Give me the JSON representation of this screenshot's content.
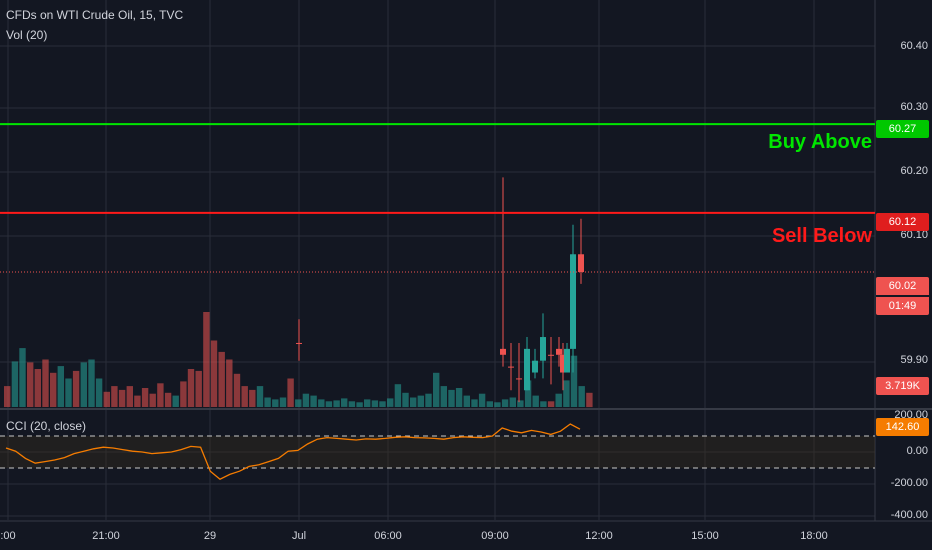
{
  "header": {
    "title": "CFDs on WTI Crude Oil, 15, TVC",
    "volume_label": "Vol (20)",
    "cci_label": "CCI (20, close)"
  },
  "annotations": {
    "buy_label": "Buy Above",
    "sell_label": "Sell Below",
    "buy_color": "#00e600",
    "sell_color": "#ff1a1a"
  },
  "price_axis": {
    "ticks": [
      "60.40",
      "60.30",
      "60.20",
      "60.10",
      "59.90"
    ]
  },
  "price_tags": {
    "buy_level": "60.27",
    "sell_level": "60.12",
    "last_price": "60.02",
    "countdown": "01:49",
    "volume": "3.719K",
    "cci_value": "142.60",
    "cci_top": "200.00"
  },
  "cci_axis": {
    "ticks": [
      "0.00",
      "-200.00",
      "-400.00"
    ]
  },
  "time_axis": {
    "ticks": [
      ":00",
      "21:00",
      "29",
      "Jul",
      "06:00",
      "09:00",
      "12:00",
      "15:00",
      "18:00"
    ]
  },
  "colors": {
    "background": "#131722",
    "grid": "#2a2e39",
    "bull": "#26a69a",
    "bear": "#ef5350",
    "cci": "#f57c00"
  },
  "chart_data": {
    "type": "candlestick",
    "symbol": "CFDs on WTI Crude Oil",
    "interval": "15",
    "price_ylim": [
      59.79,
      60.48
    ],
    "levels": {
      "buy_above": 60.27,
      "sell_below": 60.12,
      "last": 60.02
    },
    "candles": [
      {
        "o": 59.9,
        "h": 59.94,
        "l": 59.87,
        "c": 59.9,
        "dir": "bear"
      },
      {
        "o": 59.88,
        "h": 60.18,
        "l": 59.86,
        "c": 59.89,
        "dir": "bear"
      },
      {
        "o": 59.86,
        "h": 59.9,
        "l": 59.82,
        "c": 59.86,
        "dir": "bear"
      },
      {
        "o": 59.84,
        "h": 59.9,
        "l": 59.8,
        "c": 59.84,
        "dir": "bear"
      },
      {
        "o": 59.82,
        "h": 59.91,
        "l": 59.82,
        "c": 59.89,
        "dir": "bull"
      },
      {
        "o": 59.85,
        "h": 59.89,
        "l": 59.84,
        "c": 59.87,
        "dir": "bull"
      },
      {
        "o": 59.87,
        "h": 59.95,
        "l": 59.84,
        "c": 59.91,
        "dir": "bull"
      },
      {
        "o": 59.88,
        "h": 59.91,
        "l": 59.83,
        "c": 59.88,
        "dir": "bear"
      },
      {
        "o": 59.89,
        "h": 59.91,
        "l": 59.86,
        "c": 59.88,
        "dir": "bear"
      },
      {
        "o": 59.88,
        "h": 59.9,
        "l": 59.82,
        "c": 59.85,
        "dir": "bear"
      },
      {
        "o": 59.85,
        "h": 59.9,
        "l": 59.85,
        "c": 59.89,
        "dir": "bull"
      },
      {
        "o": 59.89,
        "h": 60.1,
        "l": 59.85,
        "c": 60.05,
        "dir": "bull"
      },
      {
        "o": 60.05,
        "h": 60.11,
        "l": 60.0,
        "c": 60.02,
        "dir": "bear"
      }
    ],
    "volume": [
      {
        "v": 22,
        "dir": "bear"
      },
      {
        "v": 48,
        "dir": "bull"
      },
      {
        "v": 62,
        "dir": "bull"
      },
      {
        "v": 47,
        "dir": "bear"
      },
      {
        "v": 40,
        "dir": "bear"
      },
      {
        "v": 50,
        "dir": "bear"
      },
      {
        "v": 36,
        "dir": "bear"
      },
      {
        "v": 43,
        "dir": "bull"
      },
      {
        "v": 30,
        "dir": "bull"
      },
      {
        "v": 38,
        "dir": "bear"
      },
      {
        "v": 47,
        "dir": "bull"
      },
      {
        "v": 50,
        "dir": "bull"
      },
      {
        "v": 30,
        "dir": "bull"
      },
      {
        "v": 16,
        "dir": "bear"
      },
      {
        "v": 22,
        "dir": "bear"
      },
      {
        "v": 18,
        "dir": "bear"
      },
      {
        "v": 22,
        "dir": "bear"
      },
      {
        "v": 12,
        "dir": "bear"
      },
      {
        "v": 20,
        "dir": "bear"
      },
      {
        "v": 14,
        "dir": "bear"
      },
      {
        "v": 25,
        "dir": "bear"
      },
      {
        "v": 15,
        "dir": "bear"
      },
      {
        "v": 12,
        "dir": "bull"
      },
      {
        "v": 27,
        "dir": "bear"
      },
      {
        "v": 40,
        "dir": "bear"
      },
      {
        "v": 38,
        "dir": "bear"
      },
      {
        "v": 100,
        "dir": "bear"
      },
      {
        "v": 70,
        "dir": "bear"
      },
      {
        "v": 58,
        "dir": "bear"
      },
      {
        "v": 50,
        "dir": "bear"
      },
      {
        "v": 35,
        "dir": "bear"
      },
      {
        "v": 22,
        "dir": "bear"
      },
      {
        "v": 18,
        "dir": "bear"
      },
      {
        "v": 22,
        "dir": "bull"
      },
      {
        "v": 10,
        "dir": "bull"
      },
      {
        "v": 8,
        "dir": "bull"
      },
      {
        "v": 10,
        "dir": "bull"
      },
      {
        "v": 30,
        "dir": "bear"
      },
      {
        "v": 8,
        "dir": "bull"
      },
      {
        "v": 14,
        "dir": "bull"
      },
      {
        "v": 12,
        "dir": "bull"
      },
      {
        "v": 8,
        "dir": "bull"
      },
      {
        "v": 6,
        "dir": "bull"
      },
      {
        "v": 7,
        "dir": "bull"
      },
      {
        "v": 9,
        "dir": "bull"
      },
      {
        "v": 6,
        "dir": "bull"
      },
      {
        "v": 5,
        "dir": "bull"
      },
      {
        "v": 8,
        "dir": "bull"
      },
      {
        "v": 7,
        "dir": "bull"
      },
      {
        "v": 6,
        "dir": "bull"
      },
      {
        "v": 9,
        "dir": "bull"
      },
      {
        "v": 24,
        "dir": "bull"
      },
      {
        "v": 15,
        "dir": "bull"
      },
      {
        "v": 10,
        "dir": "bull"
      },
      {
        "v": 12,
        "dir": "bull"
      },
      {
        "v": 14,
        "dir": "bull"
      },
      {
        "v": 36,
        "dir": "bull"
      },
      {
        "v": 22,
        "dir": "bull"
      },
      {
        "v": 18,
        "dir": "bull"
      },
      {
        "v": 20,
        "dir": "bull"
      },
      {
        "v": 12,
        "dir": "bull"
      },
      {
        "v": 8,
        "dir": "bull"
      },
      {
        "v": 14,
        "dir": "bull"
      },
      {
        "v": 6,
        "dir": "bull"
      },
      {
        "v": 5,
        "dir": "bull"
      },
      {
        "v": 8,
        "dir": "bull"
      },
      {
        "v": 10,
        "dir": "bull"
      },
      {
        "v": 7,
        "dir": "bull"
      },
      {
        "v": 28,
        "dir": "bull"
      },
      {
        "v": 12,
        "dir": "bull"
      },
      {
        "v": 6,
        "dir": "bull"
      },
      {
        "v": 6,
        "dir": "bear"
      },
      {
        "v": 14,
        "dir": "bull"
      },
      {
        "v": 28,
        "dir": "bull"
      },
      {
        "v": 54,
        "dir": "bull"
      },
      {
        "v": 22,
        "dir": "bull"
      },
      {
        "v": 15,
        "dir": "bear"
      }
    ],
    "cci": [
      25,
      5,
      -40,
      -70,
      -60,
      -50,
      -35,
      -10,
      5,
      20,
      30,
      25,
      15,
      5,
      0,
      -10,
      -5,
      0,
      15,
      35,
      30,
      -120,
      -170,
      -140,
      -120,
      -90,
      -80,
      -60,
      -40,
      5,
      10,
      50,
      80,
      90,
      85,
      80,
      75,
      82,
      80,
      85,
      92,
      95,
      90,
      88,
      85,
      80,
      90,
      95,
      92,
      90,
      100,
      150,
      130,
      120,
      135,
      125,
      110,
      130,
      175,
      142.6
    ],
    "cci_levels": [
      100,
      -100
    ]
  }
}
